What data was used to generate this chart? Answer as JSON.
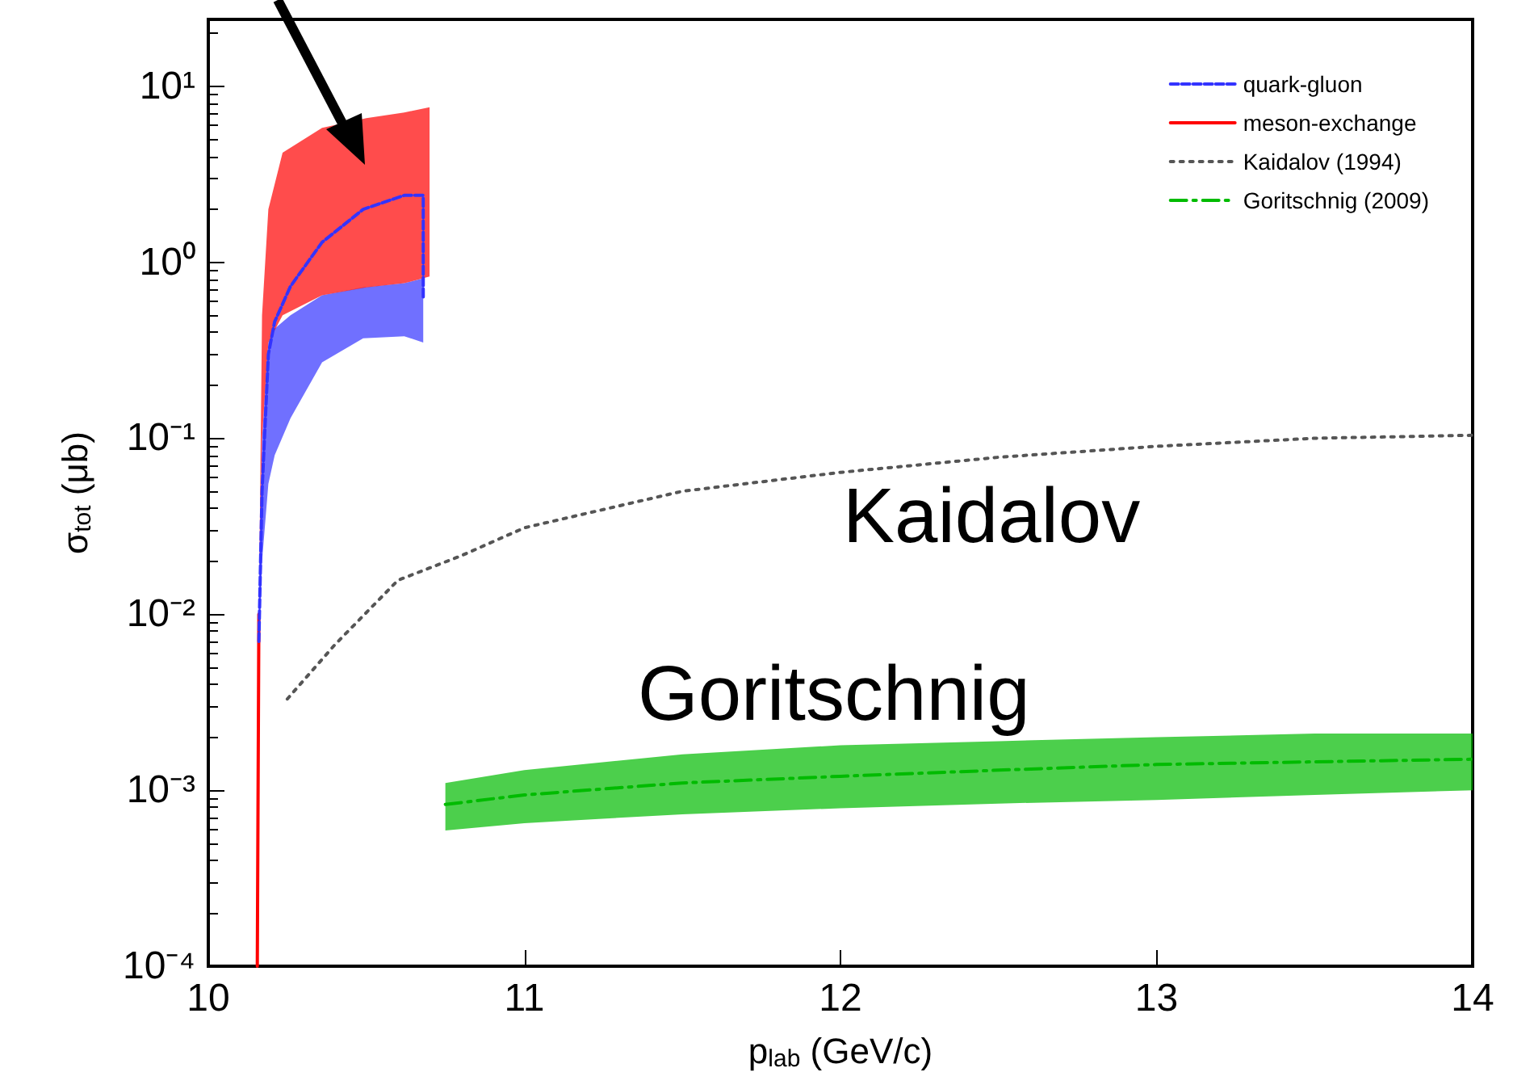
{
  "chart_data": {
    "type": "line",
    "xlabel": "p$_{lab}$ (GeV/c)",
    "ylabel": "σ$_{tot}$ (μb)",
    "log": "y",
    "xlim": [
      10,
      14
    ],
    "xticks": [
      10,
      11,
      12,
      13,
      14
    ],
    "ylim": [
      0.0001,
      24
    ],
    "yticks": [
      {
        "value": 0.0001,
        "label": "10⁻⁴"
      },
      {
        "value": 0.001,
        "label": "10⁻³"
      },
      {
        "value": 0.01,
        "label": "10⁻²"
      },
      {
        "value": 0.1,
        "label": "10⁻¹"
      },
      {
        "value": 1,
        "label": "10⁰"
      },
      {
        "value": 10,
        "label": "10¹"
      }
    ],
    "grid": false,
    "legend": "top right",
    "series": [
      {
        "name": "quark-gluon",
        "color": "#3333ff",
        "line_style": "dashed",
        "x": [
          10.16,
          10.17,
          10.19,
          10.21,
          10.26,
          10.36,
          10.49,
          10.62,
          10.68,
          10.68
        ],
        "values": [
          0.007,
          0.05,
          0.3,
          0.46,
          0.73,
          1.3,
          2.0,
          2.4,
          2.4,
          0.63
        ],
        "lower": [
          0.007,
          0.02,
          0.055,
          0.08,
          0.13,
          0.27,
          0.37,
          0.38,
          0.35,
          0.35
        ],
        "upper": [
          0.007,
          0.1,
          0.35,
          0.42,
          0.5,
          0.65,
          0.72,
          0.76,
          0.81,
          0.81
        ]
      },
      {
        "name": "meson-exchange",
        "color": "#ff0000",
        "line_style": "solid",
        "x": [
          10.155,
          10.16,
          10.17,
          10.19,
          10.235,
          10.36,
          10.5,
          10.62,
          10.7
        ],
        "values": [
          0.0001,
          0.01,
          null,
          null,
          null,
          null,
          null,
          null,
          null
        ],
        "lower": [
          null,
          0.01,
          0.1,
          0.35,
          0.5,
          0.65,
          0.72,
          0.76,
          0.83
        ],
        "upper": [
          null,
          0.01,
          0.5,
          2.0,
          4.2,
          5.8,
          6.6,
          7.1,
          7.6
        ]
      },
      {
        "name": "Kaidalov (1994)",
        "color": "#555555",
        "line_style": "dotted",
        "x": [
          10.25,
          10.4,
          10.6,
          10.8,
          11.0,
          11.5,
          12.0,
          12.5,
          13.0,
          13.5,
          14.0
        ],
        "values": [
          0.0033,
          0.0067,
          0.0156,
          0.0215,
          0.031,
          0.05,
          0.064,
          0.078,
          0.09,
          0.1,
          0.104
        ]
      },
      {
        "name": "Goritschnig (2009)",
        "color": "#00bb00",
        "line_style": "dashdot",
        "x": [
          10.75,
          11.0,
          11.5,
          12.0,
          12.5,
          13.0,
          13.5,
          14.0
        ],
        "values": [
          0.00083,
          0.00094,
          0.0011,
          0.0012,
          0.0013,
          0.0014,
          0.00145,
          0.0015
        ],
        "lower": [
          0.00059,
          0.00065,
          0.00073,
          0.00079,
          0.00084,
          0.00088,
          0.00094,
          0.001
        ],
        "upper": [
          0.0011,
          0.0013,
          0.0016,
          0.0018,
          0.0019,
          0.002,
          0.0021,
          0.0021
        ]
      }
    ],
    "annotations": [
      "Kaidalov",
      "Goritschnig"
    ]
  }
}
